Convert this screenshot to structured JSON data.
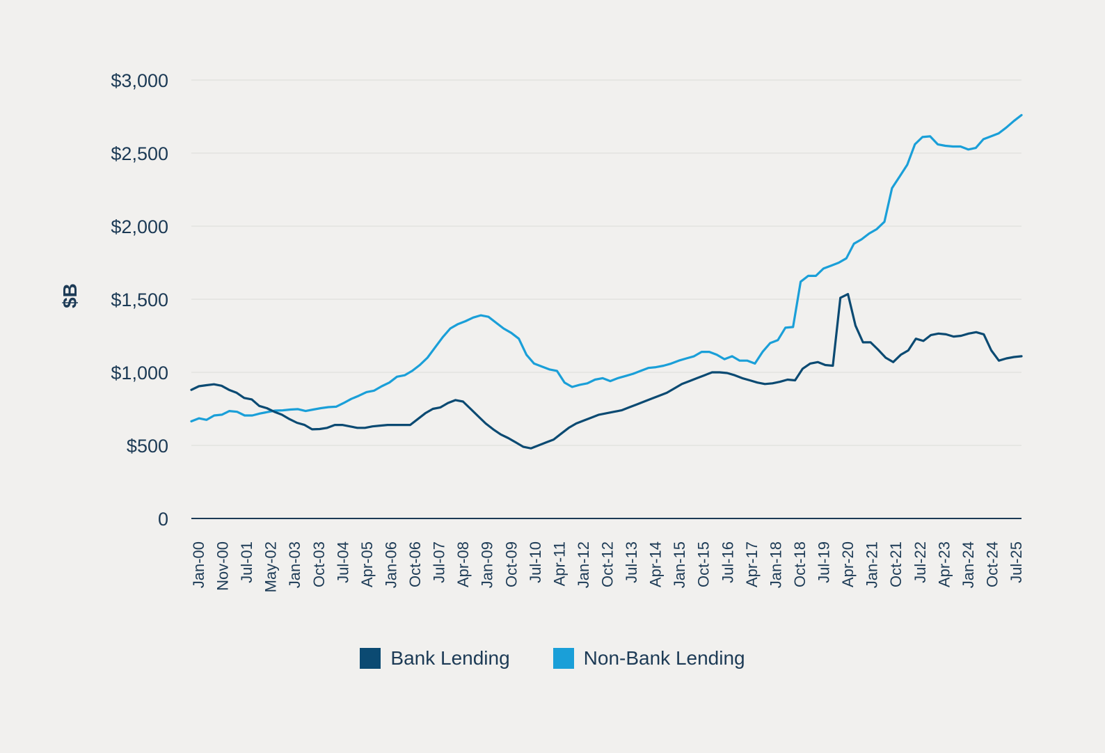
{
  "chart_data": {
    "type": "line",
    "ylabel": "$B",
    "xlabel": "",
    "ylim": [
      0,
      3000
    ],
    "yticks": [
      {
        "value": 0,
        "label": "0"
      },
      {
        "value": 500,
        "label": "$500"
      },
      {
        "value": 1000,
        "label": "$1,000"
      },
      {
        "value": 1500,
        "label": "$1,500"
      },
      {
        "value": 2000,
        "label": "$2,000"
      },
      {
        "value": 2500,
        "label": "$2,500"
      },
      {
        "value": 3000,
        "label": "$3,000"
      }
    ],
    "xticks": [
      "Jan-00",
      "Nov-00",
      "Jul-01",
      "May-02",
      "Jan-03",
      "Oct-03",
      "Jul-04",
      "Apr-05",
      "Jan-06",
      "Oct-06",
      "Jul-07",
      "Apr-08",
      "Jan-09",
      "Oct-09",
      "Jul-10",
      "Apr-11",
      "Jan-12",
      "Oct-12",
      "Jul-13",
      "Apr-14",
      "Jan-15",
      "Oct-15",
      "Jul-16",
      "Apr-17",
      "Jan-18",
      "Oct-18",
      "Jul-19",
      "Apr-20",
      "Jan-21",
      "Oct-21",
      "Jul-22",
      "Apr-23",
      "Jan-24",
      "Oct-24",
      "Jul-25"
    ],
    "grid": true,
    "legend_position": "bottom",
    "series": [
      {
        "name": "Bank Lending",
        "color": "#0b4a72",
        "values": [
          880,
          905,
          912,
          918,
          908,
          880,
          860,
          825,
          815,
          770,
          755,
          730,
          710,
          680,
          655,
          640,
          610,
          612,
          620,
          640,
          640,
          630,
          620,
          620,
          630,
          635,
          640,
          640,
          640,
          640,
          680,
          720,
          750,
          760,
          790,
          810,
          800,
          750,
          700,
          650,
          610,
          575,
          550,
          520,
          490,
          480,
          500,
          520,
          540,
          580,
          620,
          650,
          670,
          690,
          710,
          720,
          730,
          740,
          760,
          780,
          800,
          820,
          840,
          860,
          890,
          920,
          940,
          960,
          980,
          1000,
          1000,
          995,
          980,
          960,
          945,
          930,
          920,
          925,
          935,
          950,
          945,
          1025,
          1060,
          1070,
          1050,
          1045,
          1510,
          1535,
          1320,
          1205,
          1205,
          1155,
          1100,
          1070,
          1120,
          1150,
          1230,
          1215,
          1255,
          1265,
          1260,
          1245,
          1250,
          1265,
          1275,
          1260,
          1150,
          1080,
          1095,
          1105,
          1110
        ]
      },
      {
        "name": "Non-Bank Lending",
        "color": "#1a9fd8",
        "values": [
          665,
          685,
          675,
          705,
          710,
          735,
          730,
          705,
          705,
          718,
          728,
          738,
          740,
          745,
          748,
          735,
          745,
          755,
          762,
          765,
          790,
          818,
          840,
          865,
          875,
          905,
          930,
          970,
          980,
          1010,
          1050,
          1100,
          1170,
          1240,
          1300,
          1330,
          1350,
          1375,
          1390,
          1380,
          1340,
          1300,
          1270,
          1230,
          1120,
          1060,
          1040,
          1020,
          1010,
          930,
          900,
          915,
          925,
          950,
          960,
          940,
          960,
          975,
          990,
          1010,
          1030,
          1035,
          1045,
          1060,
          1080,
          1095,
          1110,
          1140,
          1140,
          1120,
          1090,
          1110,
          1080,
          1080,
          1060,
          1140,
          1200,
          1220,
          1305,
          1310,
          1620,
          1660,
          1660,
          1710,
          1730,
          1750,
          1780,
          1880,
          1910,
          1950,
          1980,
          2030,
          2260,
          2340,
          2420,
          2560,
          2610,
          2615,
          2560,
          2550,
          2545,
          2545,
          2525,
          2535,
          2595,
          2615,
          2635,
          2675,
          2720,
          2760
        ]
      }
    ]
  }
}
